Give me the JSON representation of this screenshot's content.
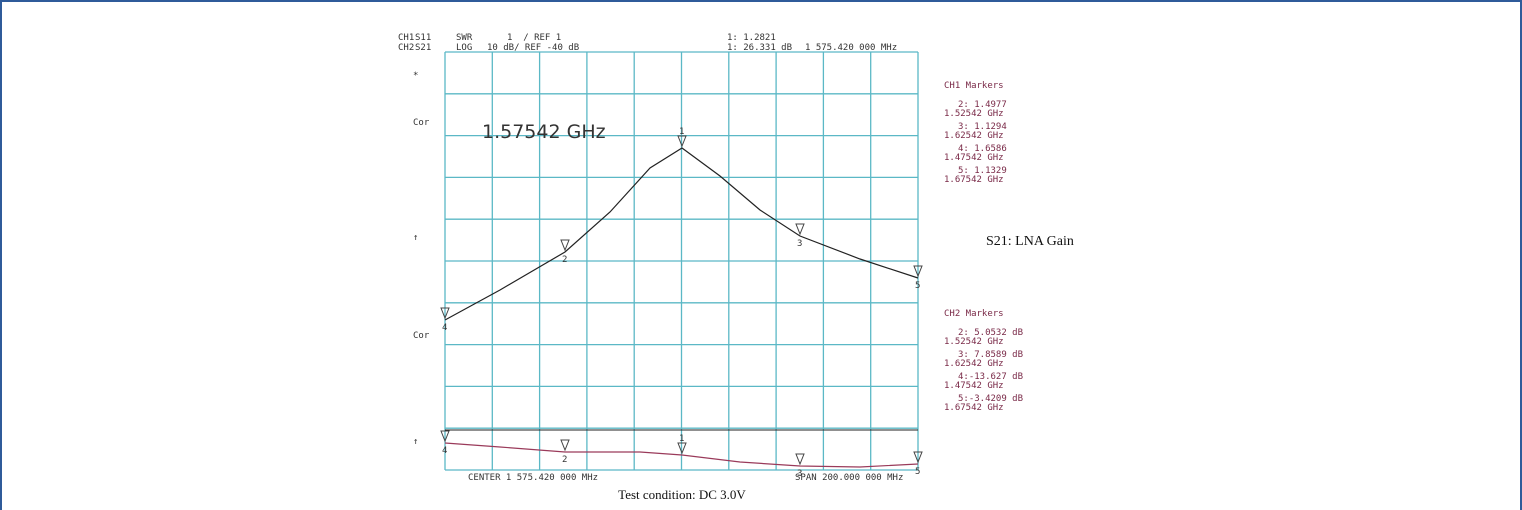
{
  "header": {
    "row1": [
      "CH1",
      "S11",
      "SWR",
      "1  / REF 1",
      "1: 1.2821"
    ],
    "row2": [
      "CH2",
      "S21",
      "LOG",
      "10 dB/ REF -40 dB",
      "1: 26.331 dB",
      "1 575.420 000 MHz"
    ]
  },
  "side_labels": [
    "*",
    "Cor",
    "↑",
    "Cor",
    "↑"
  ],
  "frequency": "1.57542 GHz",
  "ch1_markers": {
    "title": "CH1 Markers",
    "entries": [
      [
        "2: 1.4977",
        "1.52542 GHz"
      ],
      [
        "3: 1.1294",
        "1.62542 GHz"
      ],
      [
        "4: 1.6586",
        "1.47542 GHz"
      ],
      [
        "5: 1.1329",
        "1.67542 GHz"
      ]
    ]
  },
  "ch2_markers": {
    "title": "CH2 Markers",
    "entries": [
      [
        "2: 5.0532 dB",
        "1.52542 GHz"
      ],
      [
        "3: 7.8589 dB",
        "1.62542 GHz"
      ],
      [
        "4:-13.627 dB",
        "1.47542 GHz"
      ],
      [
        "5:-3.4209 dB",
        "1.67542 GHz"
      ]
    ]
  },
  "marker_numbers": [
    "1",
    "2",
    "3",
    "4",
    "5"
  ],
  "caption_right": "S21: LNA Gain",
  "center": "CENTER 1 575.420 000 MHz",
  "span": "SPAN 200.000 000 MHz",
  "caption_bottom": "Test condition: DC 3.0V"
}
